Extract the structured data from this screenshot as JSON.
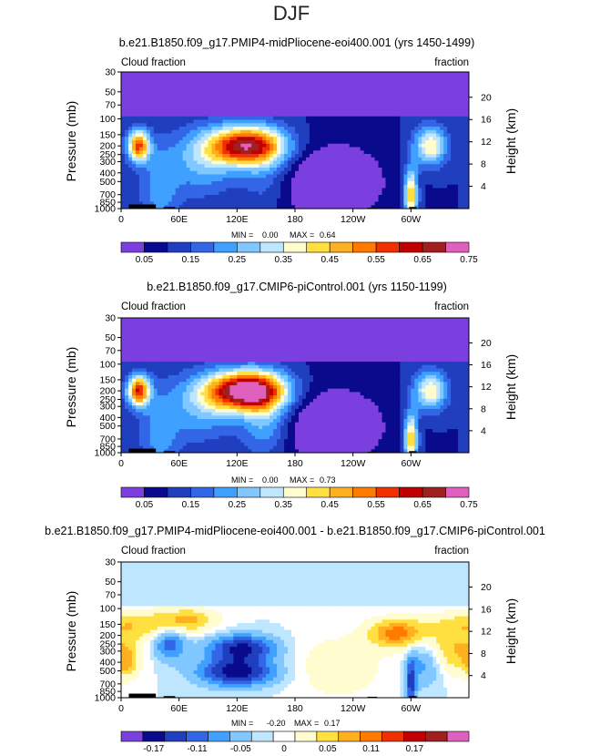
{
  "figure": {
    "suptitle": "DJF",
    "left_axis_label": "Pressure (mb)",
    "right_axis_label": "Height (km)",
    "x_tick_labels": [
      "0",
      "60E",
      "120E",
      "180",
      "120W",
      "60W"
    ],
    "y_tick_labels": [
      "30",
      "50",
      "70",
      "100",
      "150",
      "200",
      "250",
      "300",
      "400",
      "500",
      "700",
      "850",
      "1000"
    ],
    "right_tick_labels": [
      "20",
      "16",
      "12",
      "8",
      "4"
    ]
  },
  "chart_data": [
    {
      "type": "heatmap",
      "title": "b.e21.B1850.f09_g17.PMIP4-midPliocene-eoi400.001 (yrs 1450-1499)",
      "corner_left": "Cloud fraction",
      "corner_right": "fraction",
      "stats": {
        "min_label": "MIN =",
        "min": "0.00",
        "max_label": "MAX =",
        "max": "0.64"
      },
      "x": {
        "label": "",
        "ticks": [
          "0",
          "60E",
          "120E",
          "180",
          "120W",
          "60W"
        ],
        "range": [
          0,
          360
        ]
      },
      "y": {
        "label": "Pressure (mb)",
        "scale": "log",
        "range": [
          1000,
          30
        ]
      },
      "y2": {
        "label": "Height (km)",
        "ticks": [
          "20",
          "16",
          "12",
          "8",
          "4"
        ]
      },
      "colorbar": {
        "labels": [
          "0.05",
          "0.15",
          "0.25",
          "0.35",
          "0.45",
          "0.55",
          "0.65",
          "0.75"
        ],
        "colors": [
          "#7b3fe0",
          "#0a0a8c",
          "#1f3fbf",
          "#3366e6",
          "#3fa0ff",
          "#80c8ff",
          "#bfe6ff",
          "#fffccf",
          "#ffe040",
          "#ffb020",
          "#ff7a00",
          "#f03000",
          "#c00000",
          "#a02020",
          "#e060c0"
        ]
      },
      "features": [
        {
          "name": "upper-tropospheric maximum",
          "lon": 130,
          "p": 200,
          "value": 0.64
        },
        {
          "name": "cloud max",
          "lon": 20,
          "p": 200,
          "value": 0.5
        },
        {
          "name": "cloud max",
          "lon": 320,
          "p": 200,
          "value": 0.4
        },
        {
          "name": "subsidence minimum",
          "lon": 210,
          "p": 550,
          "value": 0.03
        }
      ]
    },
    {
      "type": "heatmap",
      "title": "b.e21.B1850.f09_g17.CMIP6-piControl.001 (yrs 1150-1199)",
      "corner_left": "Cloud fraction",
      "corner_right": "fraction",
      "stats": {
        "min_label": "MIN =",
        "min": "0.00",
        "max_label": "MAX =",
        "max": "0.73"
      },
      "x": {
        "label": "",
        "ticks": [
          "0",
          "60E",
          "120E",
          "180",
          "120W",
          "60W"
        ],
        "range": [
          0,
          360
        ]
      },
      "y": {
        "label": "Pressure (mb)",
        "scale": "log",
        "range": [
          1000,
          30
        ]
      },
      "y2": {
        "label": "Height (km)",
        "ticks": [
          "20",
          "16",
          "12",
          "8",
          "4"
        ]
      },
      "colorbar": {
        "labels": [
          "0.05",
          "0.15",
          "0.25",
          "0.35",
          "0.45",
          "0.55",
          "0.65",
          "0.75"
        ],
        "colors": [
          "#7b3fe0",
          "#0a0a8c",
          "#1f3fbf",
          "#3366e6",
          "#3fa0ff",
          "#80c8ff",
          "#bfe6ff",
          "#fffccf",
          "#ffe040",
          "#ffb020",
          "#ff7a00",
          "#f03000",
          "#c00000",
          "#a02020",
          "#e060c0"
        ]
      },
      "features": [
        {
          "name": "upper-tropospheric maximum",
          "lon": 130,
          "p": 190,
          "value": 0.73
        },
        {
          "name": "cloud max",
          "lon": 20,
          "p": 200,
          "value": 0.55
        },
        {
          "name": "cloud max",
          "lon": 320,
          "p": 200,
          "value": 0.35
        },
        {
          "name": "subsidence minimum",
          "lon": 225,
          "p": 500,
          "value": 0.03
        }
      ]
    },
    {
      "type": "heatmap",
      "title": "b.e21.B1850.f09_g17.PMIP4-midPliocene-eoi400.001 - b.e21.B1850.f09_g17.CMIP6-piControl.001",
      "corner_left": "Cloud fraction",
      "corner_right": "fraction",
      "stats": {
        "min_label": "MIN =",
        "min": "-0.20",
        "max_label": "MAX =",
        "max": "0.17"
      },
      "x": {
        "label": "",
        "ticks": [
          "0",
          "60E",
          "120E",
          "180",
          "120W",
          "60W"
        ],
        "range": [
          0,
          360
        ]
      },
      "y": {
        "label": "Pressure (mb)",
        "scale": "log",
        "range": [
          1000,
          30
        ]
      },
      "y2": {
        "label": "Height (km)",
        "ticks": [
          "20",
          "16",
          "12",
          "8",
          "4"
        ]
      },
      "colorbar": {
        "labels": [
          "-0.17",
          "-0.11",
          "-0.05",
          "0",
          "0.05",
          "0.11",
          "0.17"
        ],
        "colors": [
          "#7b3fe0",
          "#0a0a8c",
          "#1f3fbf",
          "#3366e6",
          "#3fa0ff",
          "#80c8ff",
          "#bfe6ff",
          "#ffffff",
          "#fffccf",
          "#ffe040",
          "#ffb020",
          "#ff7a00",
          "#f03000",
          "#c00000",
          "#a02020",
          "#e060c0"
        ]
      },
      "features": [
        {
          "name": "difference minimum",
          "lon": 120,
          "p": 500,
          "value": -0.2
        },
        {
          "name": "difference maximum",
          "lon": 285,
          "p": 150,
          "value": 0.17
        }
      ]
    }
  ]
}
